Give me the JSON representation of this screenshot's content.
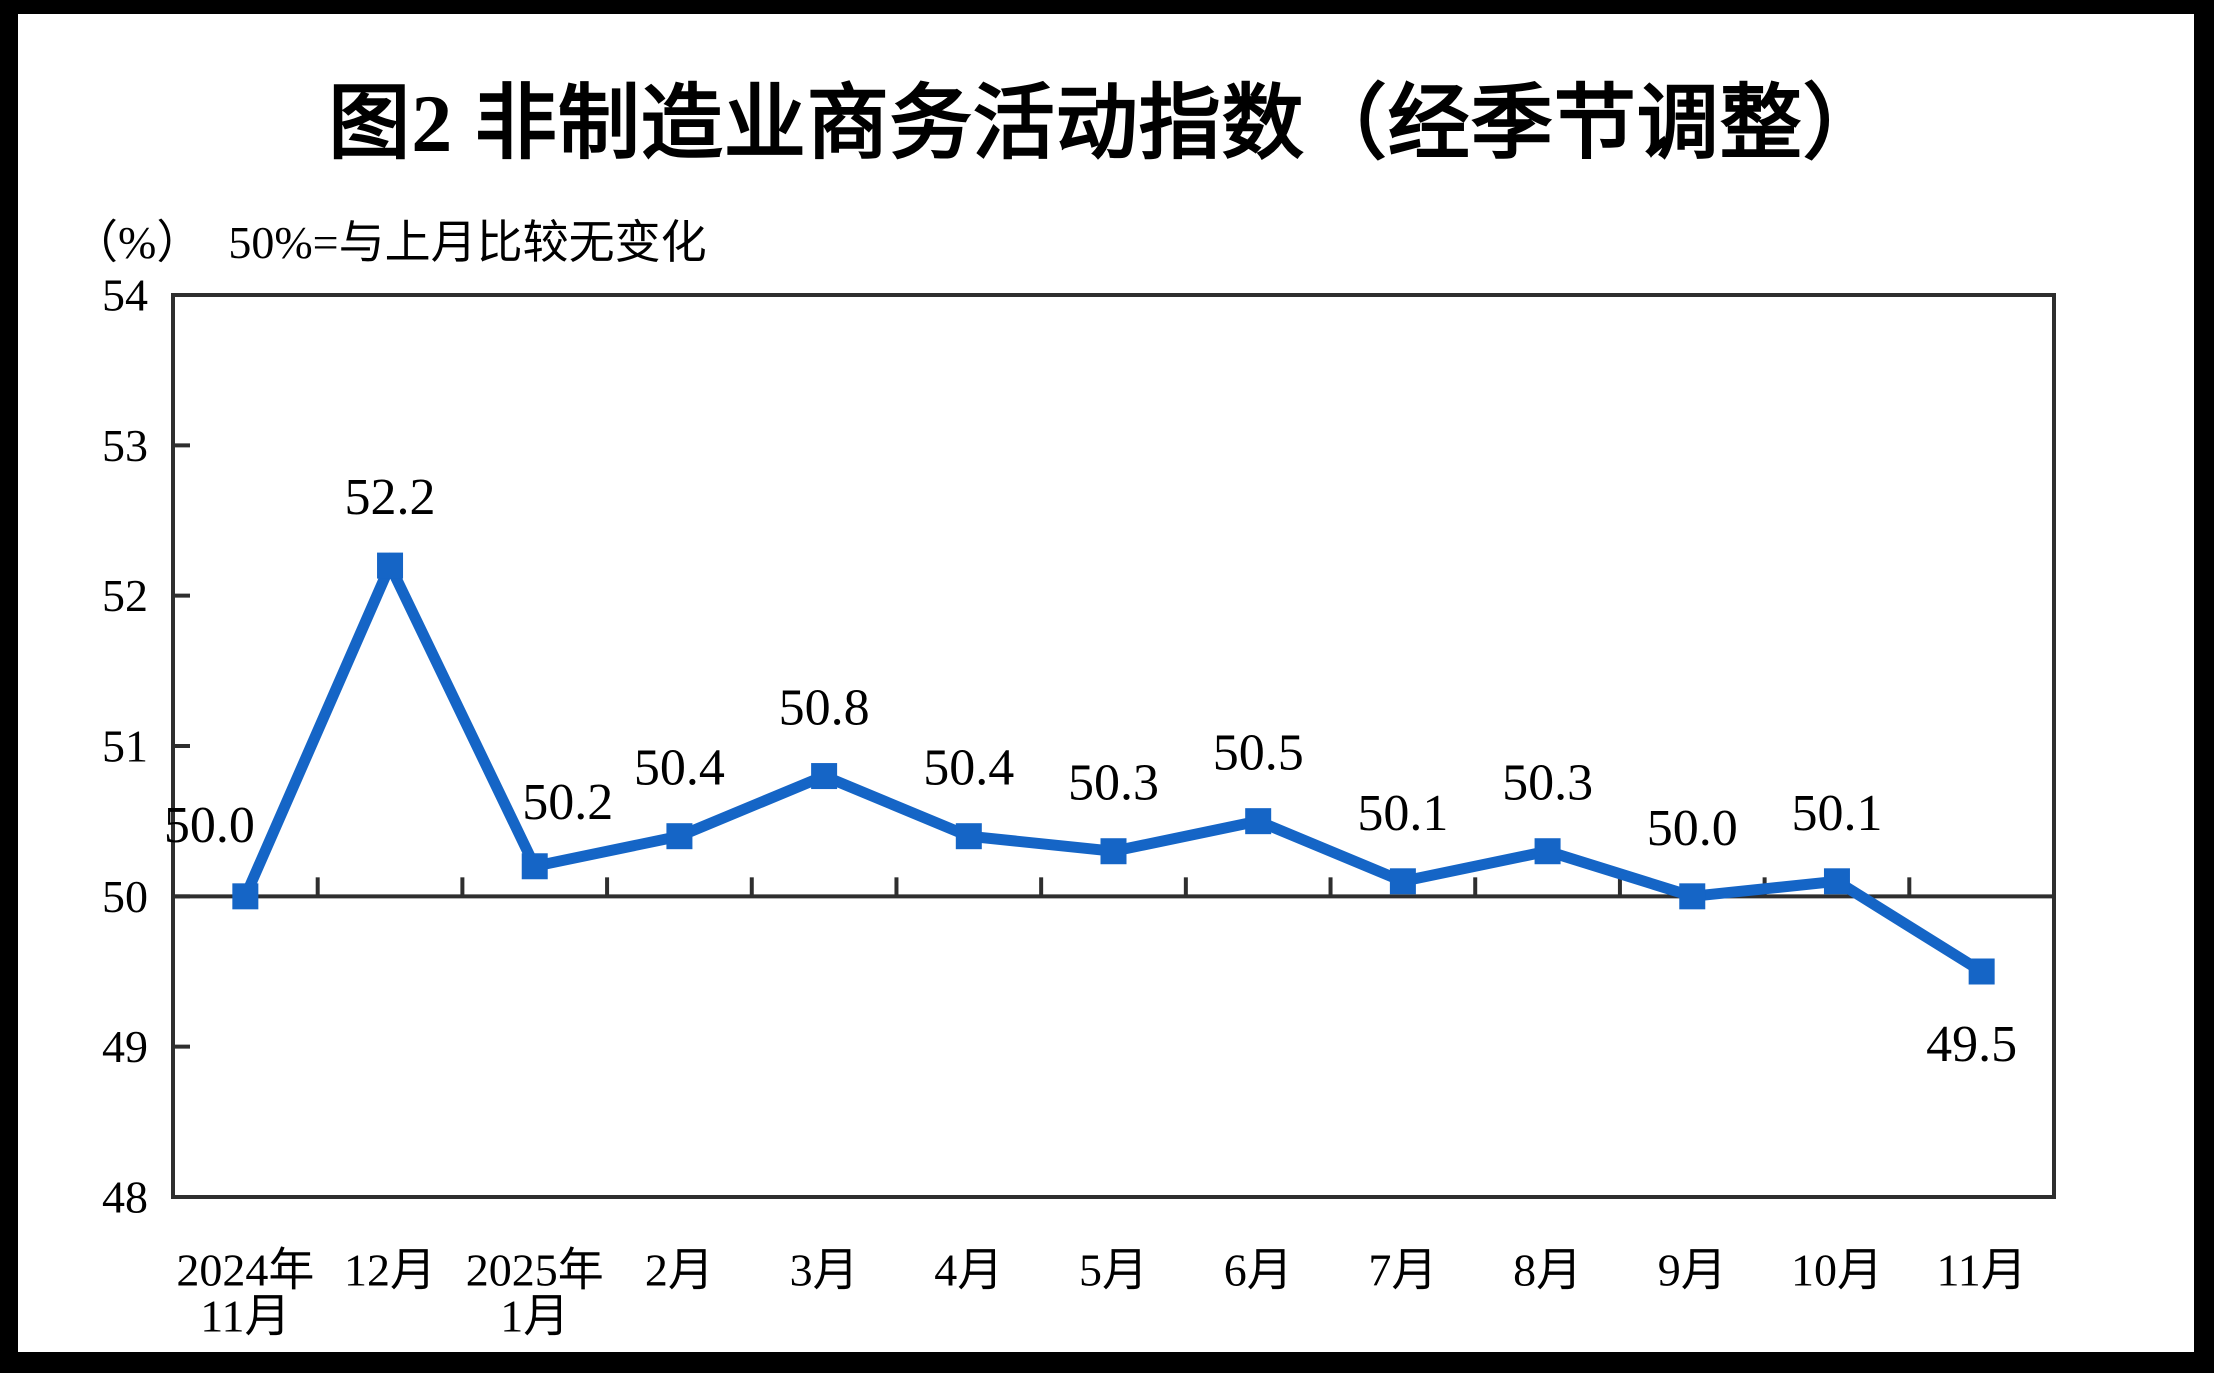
{
  "title": "图2 非制造业商务活动指数（经季节调整）",
  "unit_note": {
    "unit": "（%）",
    "note": "50%=与上月比较无变化"
  },
  "chart_data": {
    "type": "line",
    "title": "图2 非制造业商务活动指数（经季节调整）",
    "subtitle": "（%） 50%=与上月比较无变化",
    "categories": [
      "2024年\n11月",
      "12月",
      "2025年\n1月",
      "2月",
      "3月",
      "4月",
      "5月",
      "6月",
      "7月",
      "8月",
      "9月",
      "10月",
      "11月"
    ],
    "values": [
      50.0,
      52.2,
      50.2,
      50.4,
      50.8,
      50.4,
      50.3,
      50.5,
      50.1,
      50.3,
      50.0,
      50.1,
      49.5
    ],
    "point_labels": [
      "50.0",
      "52.2",
      "50.2",
      "50.4",
      "50.8",
      "50.4",
      "50.3",
      "50.5",
      "50.1",
      "50.3",
      "50.0",
      "50.1",
      "49.5"
    ],
    "xlabel": "",
    "ylabel": "",
    "ylim": [
      48,
      54
    ],
    "yticks": [
      48,
      49,
      50,
      51,
      52,
      53,
      54
    ],
    "baseline_value": 50,
    "grid": false,
    "legend_position": "none",
    "marker": "square",
    "series_color": "#1565C6",
    "axis_color": "#2E2E2E",
    "text_color": "#000000"
  }
}
